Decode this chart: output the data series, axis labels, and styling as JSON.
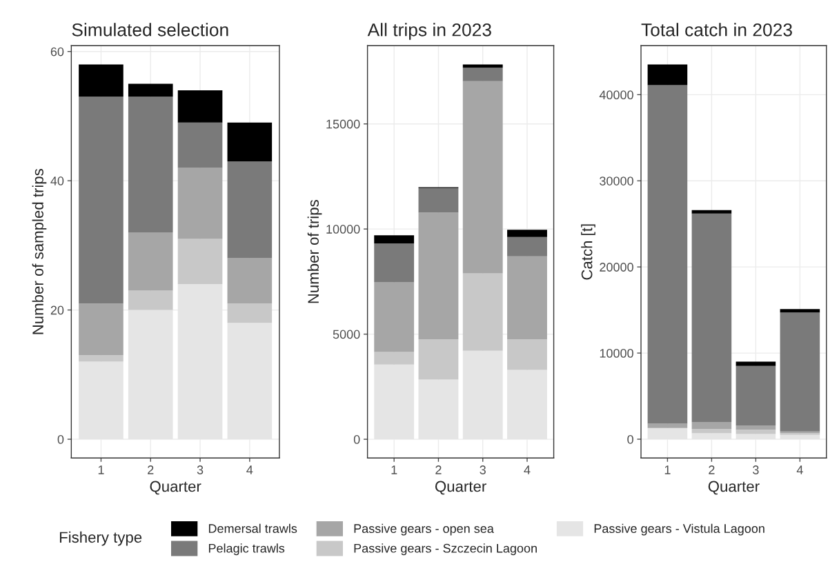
{
  "chart_data": [
    {
      "type": "bar",
      "stacked": true,
      "title": "Simulated selection",
      "xlabel": "Quarter",
      "ylabel": "Number of sampled trips",
      "categories": [
        "1",
        "2",
        "3",
        "4"
      ],
      "ylim": [
        -2.9,
        60.9
      ],
      "yticks": [
        0,
        20,
        40,
        60
      ],
      "grid": true,
      "legend": "bottom",
      "legend_title": "Fishery type",
      "series": [
        {
          "name": "Passive gears - Vistula Lagoon",
          "color": "#e5e5e5",
          "values": [
            12,
            20,
            24,
            18
          ]
        },
        {
          "name": "Passive gears - Szczecin Lagoon",
          "color": "#c8c8c8",
          "values": [
            1,
            3,
            7,
            3
          ]
        },
        {
          "name": "Passive gears - open sea",
          "color": "#a6a6a6",
          "values": [
            8,
            9,
            11,
            7
          ]
        },
        {
          "name": "Pelagic trawls",
          "color": "#7a7a7a",
          "values": [
            32,
            21,
            7,
            15
          ]
        },
        {
          "name": "Demersal trawls",
          "color": "#000000",
          "values": [
            5,
            2,
            5,
            6
          ]
        }
      ]
    },
    {
      "type": "bar",
      "stacked": true,
      "title": "All trips in 2023",
      "xlabel": "Quarter",
      "ylabel": "Number of trips",
      "categories": [
        "1",
        "2",
        "3",
        "4"
      ],
      "ylim": [
        -890,
        18720
      ],
      "yticks": [
        0,
        5000,
        10000,
        15000
      ],
      "grid": true,
      "series": [
        {
          "name": "Passive gears - Vistula Lagoon",
          "color": "#e5e5e5",
          "values": [
            3550,
            2840,
            4210,
            3300
          ]
        },
        {
          "name": "Passive gears - Szczecin Lagoon",
          "color": "#c8c8c8",
          "values": [
            600,
            1920,
            3680,
            1460
          ]
        },
        {
          "name": "Passive gears - open sea",
          "color": "#a6a6a6",
          "values": [
            3310,
            6020,
            9140,
            3940
          ]
        },
        {
          "name": "Pelagic trawls",
          "color": "#7a7a7a",
          "values": [
            1860,
            1170,
            640,
            920
          ]
        },
        {
          "name": "Demersal trawls",
          "color": "#000000",
          "values": [
            380,
            40,
            160,
            340
          ]
        }
      ]
    },
    {
      "type": "bar",
      "stacked": true,
      "title": "Total catch in 2023",
      "xlabel": "Quarter",
      "ylabel": "Catch [t]",
      "categories": [
        "1",
        "2",
        "3",
        "4"
      ],
      "ylim": [
        -2180,
        45690
      ],
      "yticks": [
        0,
        10000,
        20000,
        30000,
        40000
      ],
      "grid": true,
      "series": [
        {
          "name": "Passive gears - Vistula Lagoon",
          "color": "#e5e5e5",
          "values": [
            1300,
            700,
            600,
            500
          ]
        },
        {
          "name": "Passive gears - Szczecin Lagoon",
          "color": "#c8c8c8",
          "values": [
            null,
            500,
            500,
            200
          ]
        },
        {
          "name": "Passive gears - open sea",
          "color": "#a6a6a6",
          "values": [
            500,
            800,
            500,
            200
          ]
        },
        {
          "name": "Pelagic trawls",
          "color": "#7a7a7a",
          "values": [
            39300,
            24200,
            6900,
            13800
          ]
        },
        {
          "name": "Demersal trawls",
          "color": "#000000",
          "values": [
            2400,
            400,
            500,
            400
          ]
        }
      ]
    }
  ]
}
